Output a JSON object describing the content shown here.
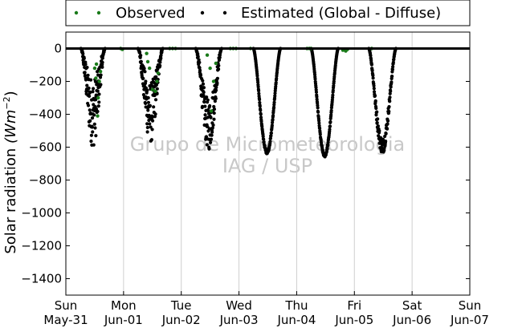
{
  "chart_data": {
    "type": "scatter",
    "ylabel": "Solar radiation ",
    "ylabel_unit": "(Wm^-2)",
    "ylabel_base": "(Wm",
    "ylabel_exp": "−2",
    "ylabel_close": ")",
    "ylim": [
      -1500,
      100
    ],
    "xlim": [
      0,
      7
    ],
    "yticks": [
      0,
      -200,
      -400,
      -600,
      -800,
      -1000,
      -1200,
      -1400
    ],
    "ytick_labels": [
      "0",
      "−200",
      "−400",
      "−600",
      "−800",
      "−1000",
      "−1200",
      "−1400"
    ],
    "xticks": [
      {
        "pos": 0,
        "day": "Sun",
        "date": "May-31"
      },
      {
        "pos": 1,
        "day": "Mon",
        "date": "Jun-01"
      },
      {
        "pos": 2,
        "day": "Tue",
        "date": "Jun-02"
      },
      {
        "pos": 3,
        "day": "Wed",
        "date": "Jun-03"
      },
      {
        "pos": 4,
        "day": "Thu",
        "date": "Jun-04"
      },
      {
        "pos": 5,
        "day": "Fri",
        "date": "Jun-05"
      },
      {
        "pos": 6,
        "day": "Sat",
        "date": "Jun-06"
      },
      {
        "pos": 7,
        "day": "Sun",
        "date": "Jun-07"
      }
    ],
    "grid": "vertical",
    "legend_position": "top",
    "watermark": [
      "Grupo de Micrometeorologia",
      "IAG / USP"
    ],
    "series": [
      {
        "name": "Observed",
        "color": "#1a7a1a",
        "points": [
          [
            0.5,
            -120
          ],
          [
            0.52,
            -180
          ],
          [
            0.55,
            -410
          ],
          [
            0.56,
            -300
          ],
          [
            0.58,
            -200
          ],
          [
            0.6,
            -140
          ],
          [
            0.53,
            -95
          ],
          [
            0.95,
            0
          ],
          [
            0.98,
            -5
          ],
          [
            1.4,
            -30
          ],
          [
            1.42,
            -80
          ],
          [
            1.45,
            -120
          ],
          [
            1.5,
            -250
          ],
          [
            1.55,
            -260
          ],
          [
            1.58,
            -200
          ],
          [
            1.6,
            -150
          ],
          [
            1.8,
            0
          ],
          [
            1.85,
            0
          ],
          [
            1.9,
            0
          ],
          [
            2.45,
            -40
          ],
          [
            2.5,
            -120
          ],
          [
            2.52,
            -380
          ],
          [
            2.56,
            -200
          ],
          [
            2.6,
            -90
          ],
          [
            2.85,
            0
          ],
          [
            2.9,
            0
          ],
          [
            2.95,
            0
          ],
          [
            3.2,
            0
          ],
          [
            4.18,
            0
          ],
          [
            4.22,
            0
          ],
          [
            4.25,
            0
          ],
          [
            4.8,
            -10
          ],
          [
            4.85,
            -15
          ],
          [
            4.88,
            -5
          ],
          [
            5.3,
            0
          ]
        ]
      },
      {
        "name": "Estimated (Global - Diffuse)",
        "color": "#000000",
        "day_envelopes": [
          {
            "start": 0.26,
            "end": 0.68,
            "peak": 600,
            "noise": 0.7
          },
          {
            "start": 1.25,
            "end": 1.68,
            "peak": 580,
            "noise": 0.65
          },
          {
            "start": 2.25,
            "end": 2.7,
            "peak": 620,
            "noise": 0.5
          },
          {
            "start": 3.25,
            "end": 3.72,
            "peak": 640,
            "noise": 0.05
          },
          {
            "start": 4.25,
            "end": 4.72,
            "peak": 660,
            "noise": 0.05
          },
          {
            "start": 5.25,
            "end": 5.72,
            "peak": 640,
            "noise": 0.15
          }
        ]
      }
    ]
  }
}
